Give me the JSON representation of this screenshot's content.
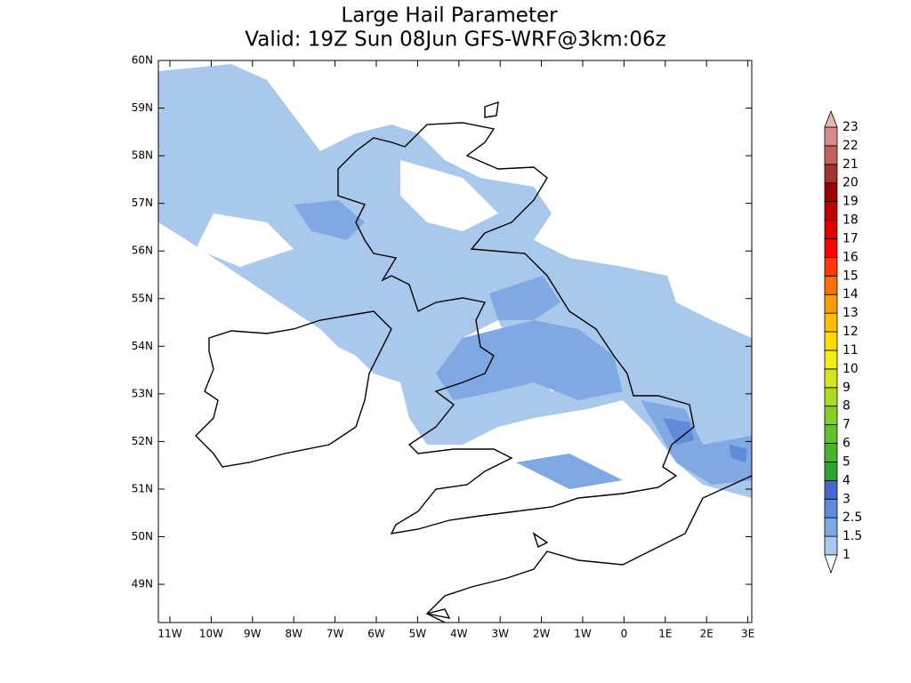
{
  "title": [
    "Large Hail Parameter",
    "Valid: 19Z Sun 08Jun GFS-WRF@3km:06z"
  ],
  "y_axis_labels": [
    "60N",
    "59N",
    "58N",
    "57N",
    "56N",
    "55N",
    "54N",
    "53N",
    "52N",
    "51N",
    "50N",
    "49N"
  ],
  "x_axis_labels": [
    "11W",
    "10W",
    "9W",
    "8W",
    "7W",
    "6W",
    "5W",
    "4W",
    "3W",
    "2W",
    "1W",
    "0",
    "1E",
    "2E",
    "3E"
  ],
  "colorbar": {
    "labels": [
      "1",
      "1.5",
      "2.5",
      "3",
      "4",
      "5",
      "6",
      "7",
      "8",
      "9",
      "10",
      "11",
      "12",
      "13",
      "14",
      "15",
      "16",
      "17",
      "18",
      "19",
      "20",
      "21",
      "22",
      "23"
    ],
    "colors": [
      "#a8c8ec",
      "#80a8e2",
      "#5f8bda",
      "#4468d0",
      "#2ea52e",
      "#44b52c",
      "#60c22a",
      "#86cf26",
      "#addb20",
      "#d2e61a",
      "#f0ee10",
      "#ffdc00",
      "#ffbe00",
      "#ff9a00",
      "#ff7000",
      "#ff3c00",
      "#ff0000",
      "#e00000",
      "#c00000",
      "#a00000",
      "#a83030",
      "#c46060",
      "#d68a8a"
    ],
    "over_color": "#e8b4b4",
    "under_color": "#ffffff"
  }
}
